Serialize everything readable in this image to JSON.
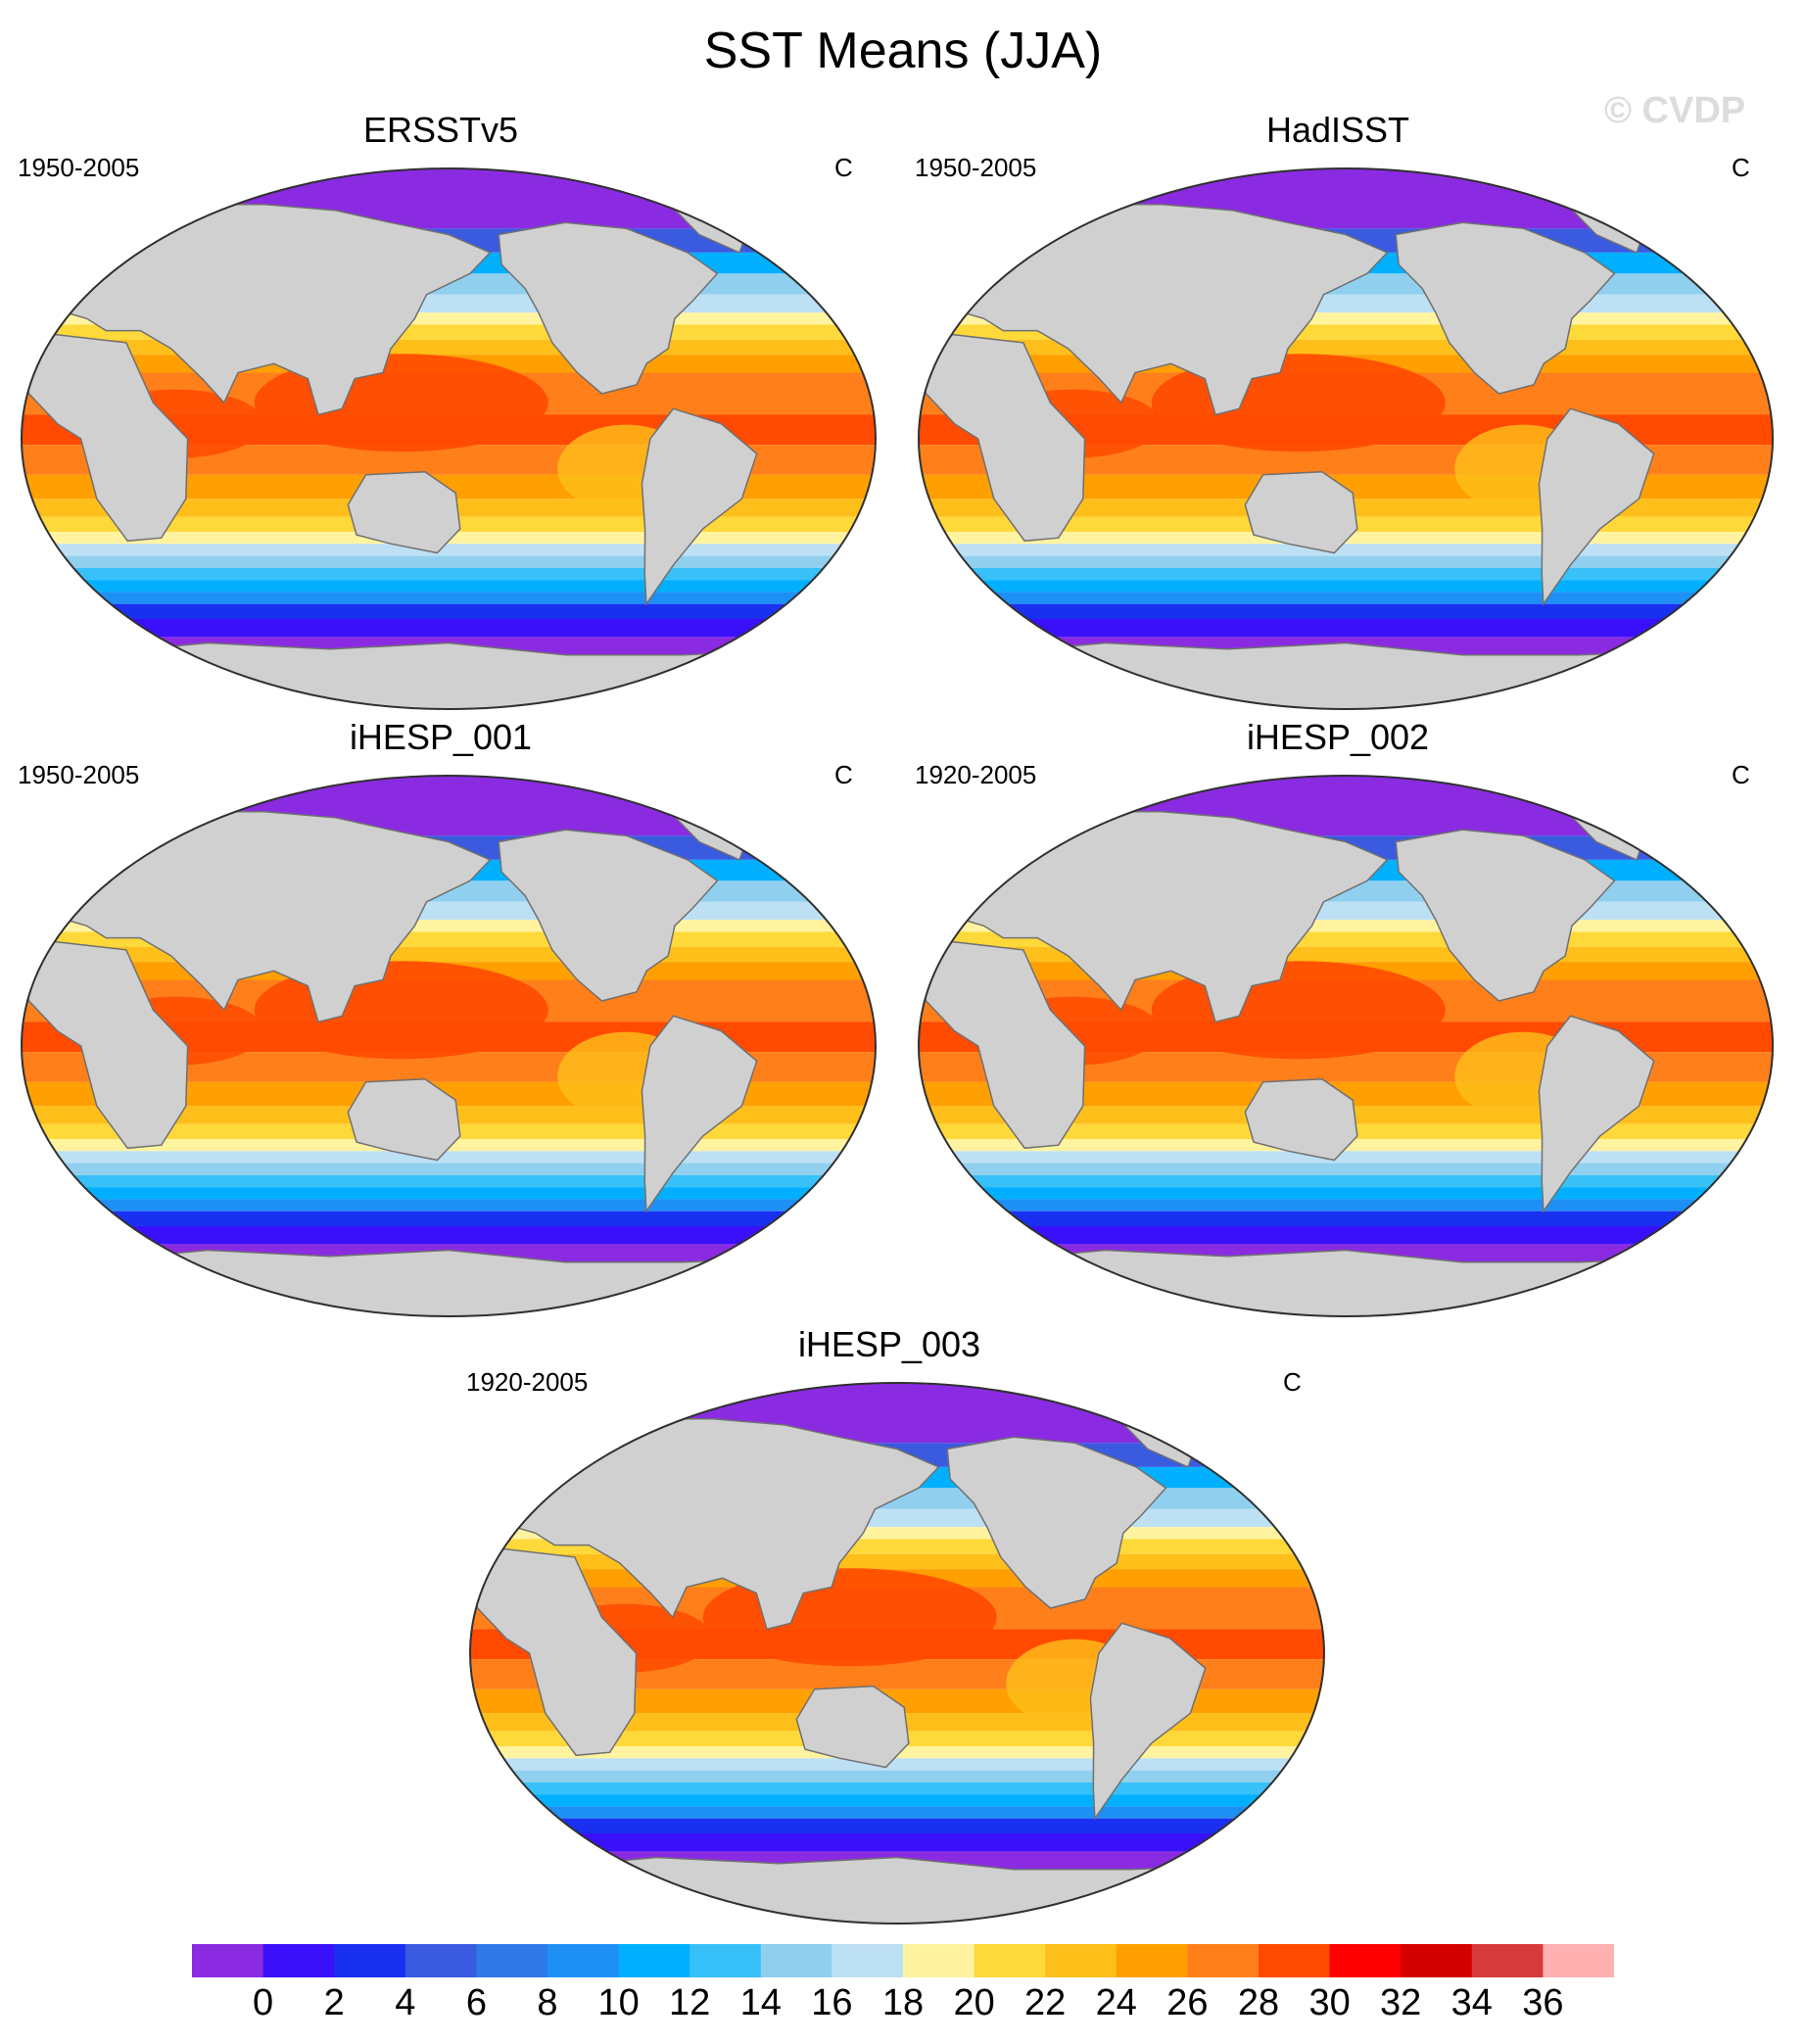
{
  "figure": {
    "title": "SST Means (JJA)",
    "watermark": "© CVDP"
  },
  "panels": [
    {
      "title": "ERSSTv5",
      "period": "1950-2005",
      "units": "C"
    },
    {
      "title": "HadISST",
      "period": "1950-2005",
      "units": "C"
    },
    {
      "title": "iHESP_001",
      "period": "1950-2005",
      "units": "C"
    },
    {
      "title": "iHESP_002",
      "period": "1920-2005",
      "units": "C"
    },
    {
      "title": "iHESP_003",
      "period": "1920-2005",
      "units": "C"
    }
  ],
  "colorbar": {
    "colors": [
      "#8a2be2",
      "#3a10fa",
      "#1a30f0",
      "#3a5ae0",
      "#2f7ae8",
      "#1e90f5",
      "#00b0ff",
      "#38c0f8",
      "#90d0ee",
      "#bde0f5",
      "#fff3a0",
      "#ffd83a",
      "#ffbf1a",
      "#ff9f00",
      "#ff7f1a",
      "#ff4a00",
      "#ff0000",
      "#d40000",
      "#d63a3a",
      "#ffb0b0"
    ],
    "tick_labels": [
      "0",
      "2",
      "4",
      "6",
      "8",
      "10",
      "12",
      "14",
      "16",
      "18",
      "20",
      "22",
      "24",
      "26",
      "28",
      "30",
      "32",
      "34",
      "36"
    ]
  },
  "colors": {
    "land": "#d0d0d0",
    "land_outline": "#707070"
  }
}
